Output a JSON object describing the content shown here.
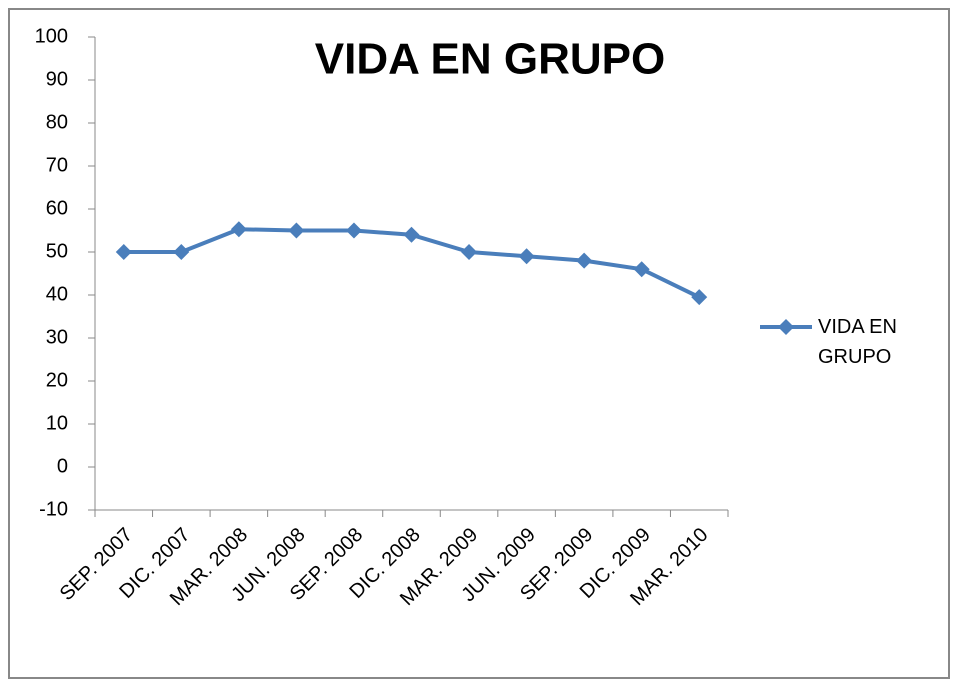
{
  "chart_data": {
    "type": "line",
    "title": "VIDA EN GRUPO",
    "categories": [
      "SEP. 2007",
      "DIC. 2007",
      "MAR. 2008",
      "JUN. 2008",
      "SEP. 2008",
      "DIC. 2008",
      "MAR. 2009",
      "JUN. 2009",
      "SEP. 2009",
      "DIC. 2009",
      "MAR. 2010"
    ],
    "series": [
      {
        "name": "VIDA EN GRUPO",
        "color": "#4a7ebb",
        "values": [
          50,
          50,
          55.3,
          55,
          55,
          54,
          50,
          49,
          48,
          46,
          39.5
        ]
      }
    ],
    "ylim": [
      -10,
      100
    ],
    "yticks": [
      -10,
      0,
      10,
      20,
      30,
      40,
      50,
      60,
      70,
      80,
      90,
      100
    ],
    "grid": false,
    "legend": "right"
  }
}
